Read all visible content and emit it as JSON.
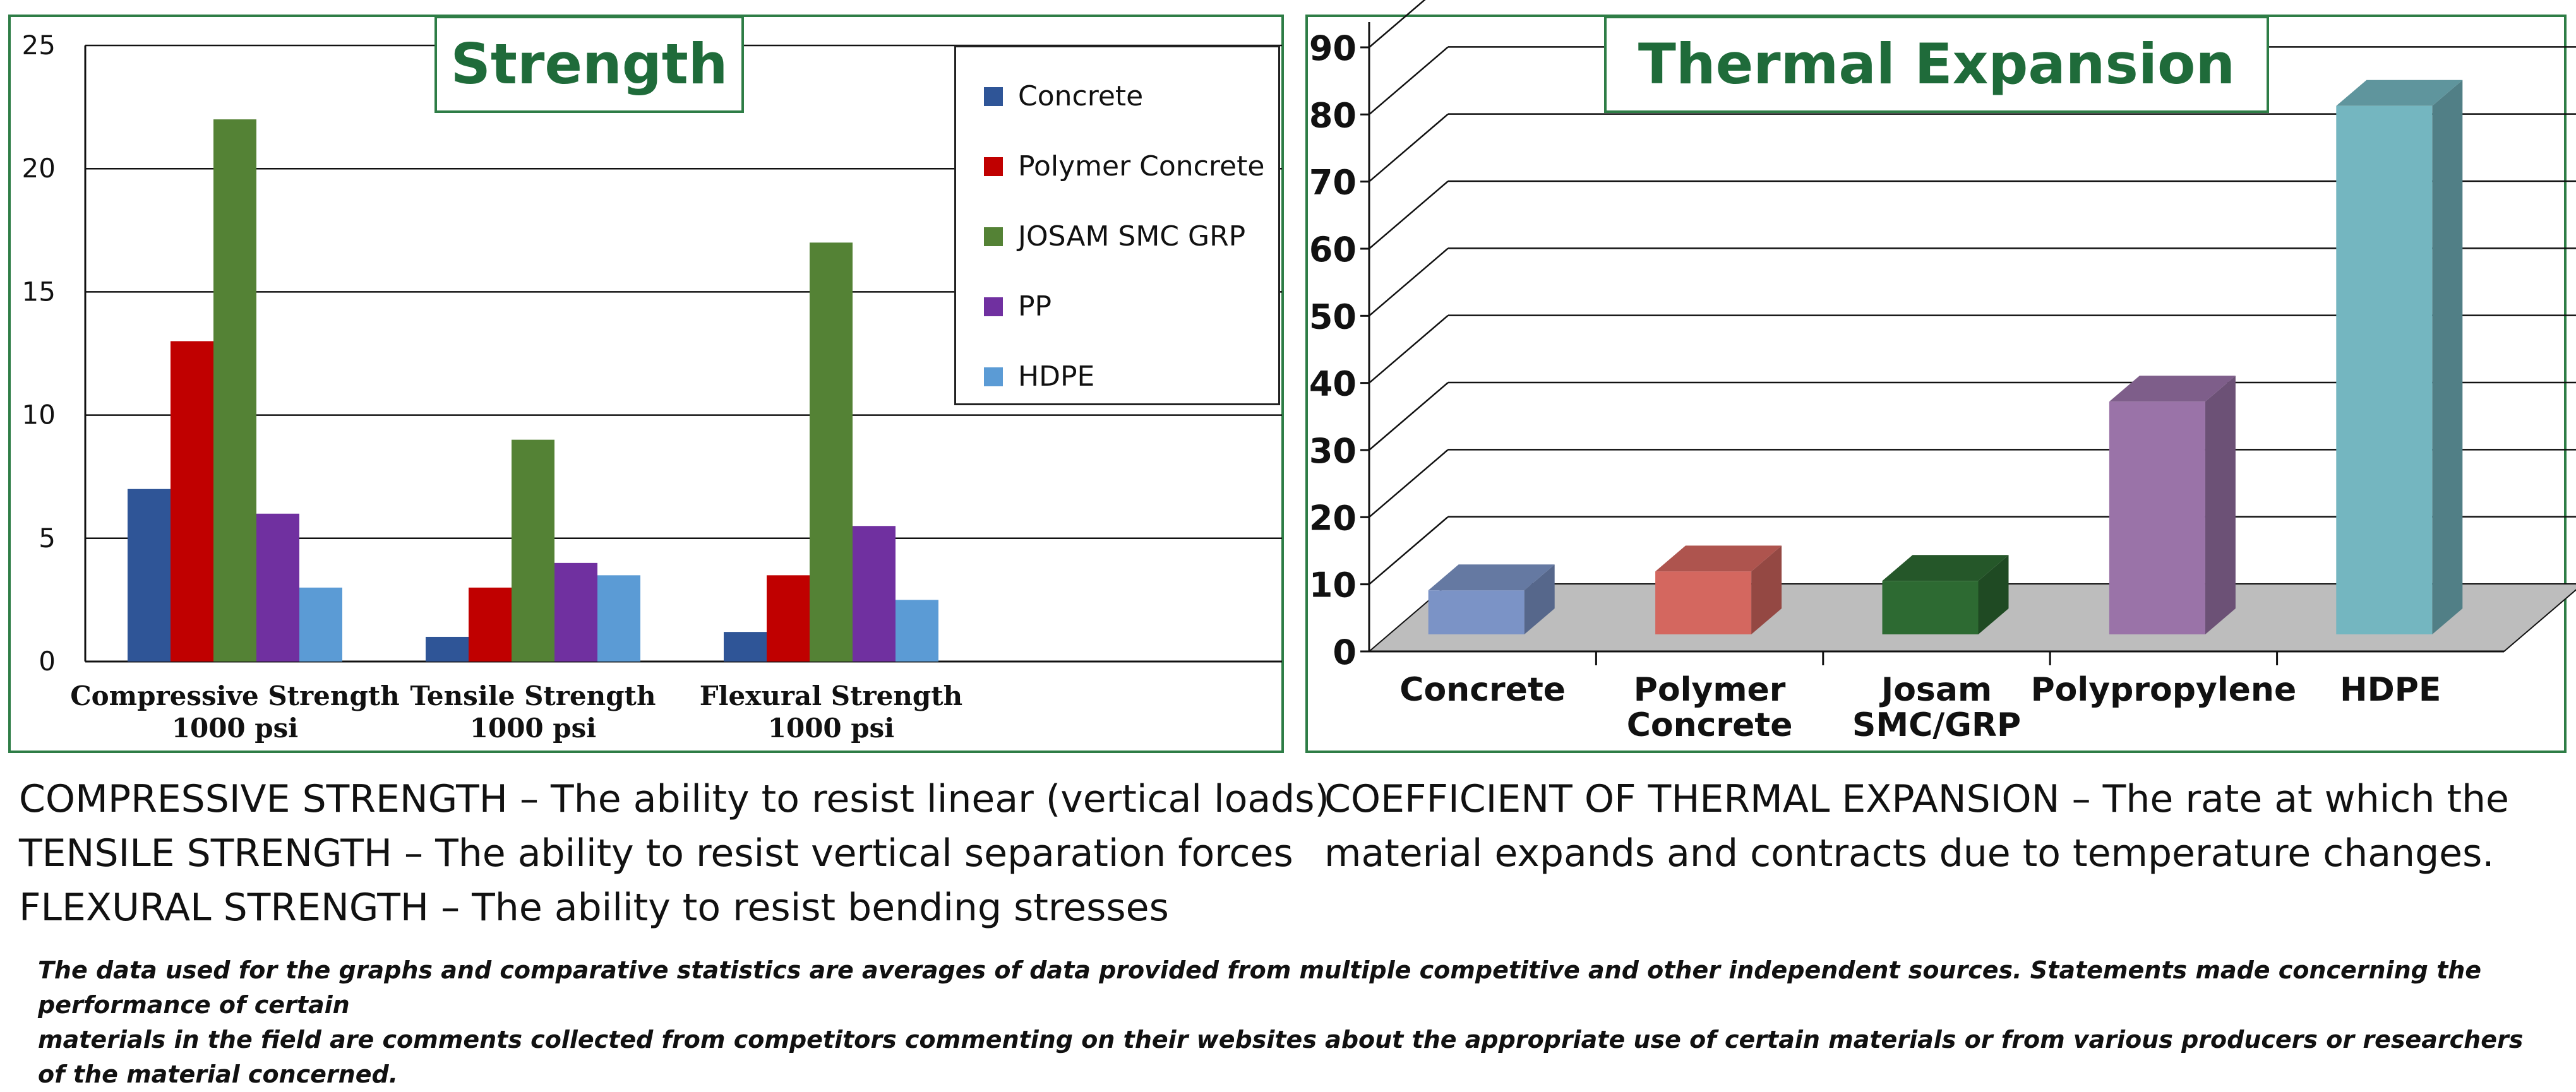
{
  "chart_data": [
    {
      "type": "bar",
      "title": "Strength",
      "categories": [
        {
          "line1": "Compressive Strength",
          "line2": "1000 psi"
        },
        {
          "line1": "Tensile Strength",
          "line2": "1000 psi"
        },
        {
          "line1": "Flexural Strength",
          "line2": "1000 psi"
        }
      ],
      "series": [
        {
          "name": "Concrete",
          "color": "#2f5597",
          "values": [
            7,
            1,
            1.2
          ]
        },
        {
          "name": "Polymer Concrete",
          "color": "#c00000",
          "values": [
            13,
            3,
            3.5
          ]
        },
        {
          "name": "JOSAM SMC GRP",
          "color": "#548235",
          "values": [
            22,
            9,
            17
          ]
        },
        {
          "name": "PP",
          "color": "#7030a0",
          "values": [
            6,
            4,
            5.5
          ]
        },
        {
          "name": "HDPE",
          "color": "#5b9bd5",
          "values": [
            3,
            3.5,
            2.5
          ]
        }
      ],
      "yticks": [
        "0",
        "5",
        "10",
        "15",
        "20",
        "25"
      ],
      "ylim": [
        0,
        25
      ],
      "grid": true,
      "legend": "top-right"
    },
    {
      "type": "bar",
      "title": "Thermal Expansion",
      "categories": [
        {
          "line1": "Concrete",
          "line2": ""
        },
        {
          "line1": "Polymer",
          "line2": "Concrete"
        },
        {
          "line1": "Josam",
          "line2": "SMC/GRP"
        },
        {
          "line1": "Polypropylene",
          "line2": ""
        },
        {
          "line1": "HDPE",
          "line2": ""
        }
      ],
      "values": [
        7,
        10,
        8.5,
        37,
        84
      ],
      "colors": [
        "#7b93c6",
        "#d4675f",
        "#2d6a32",
        "#9a73a8",
        "#74b6c0"
      ],
      "yticks": [
        "0",
        "10",
        "20",
        "30",
        "40",
        "50",
        "60",
        "70",
        "80",
        "90"
      ],
      "ylim": [
        0,
        90
      ],
      "grid": true
    }
  ],
  "descriptions": {
    "left": [
      "COMPRESSIVE STRENGTH – The ability to resist linear (vertical loads)",
      "TENSILE STRENGTH – The ability to resist vertical separation forces",
      "FLEXURAL STRENGTH – The ability to resist bending stresses"
    ],
    "right": [
      "COEFFICIENT OF THERMAL EXPANSION – The rate at which the",
      "material expands and contracts due to temperature changes."
    ]
  },
  "footnote": {
    "line1": "The data used for the graphs and comparative statistics are averages of data provided from multiple competitive and other independent sources.  Statements made concerning the performance of certain",
    "line2": "materials in the field are comments collected from competitors commenting on their websites about the appropriate use of certain materials or from various producers or researchers of the material concerned."
  }
}
